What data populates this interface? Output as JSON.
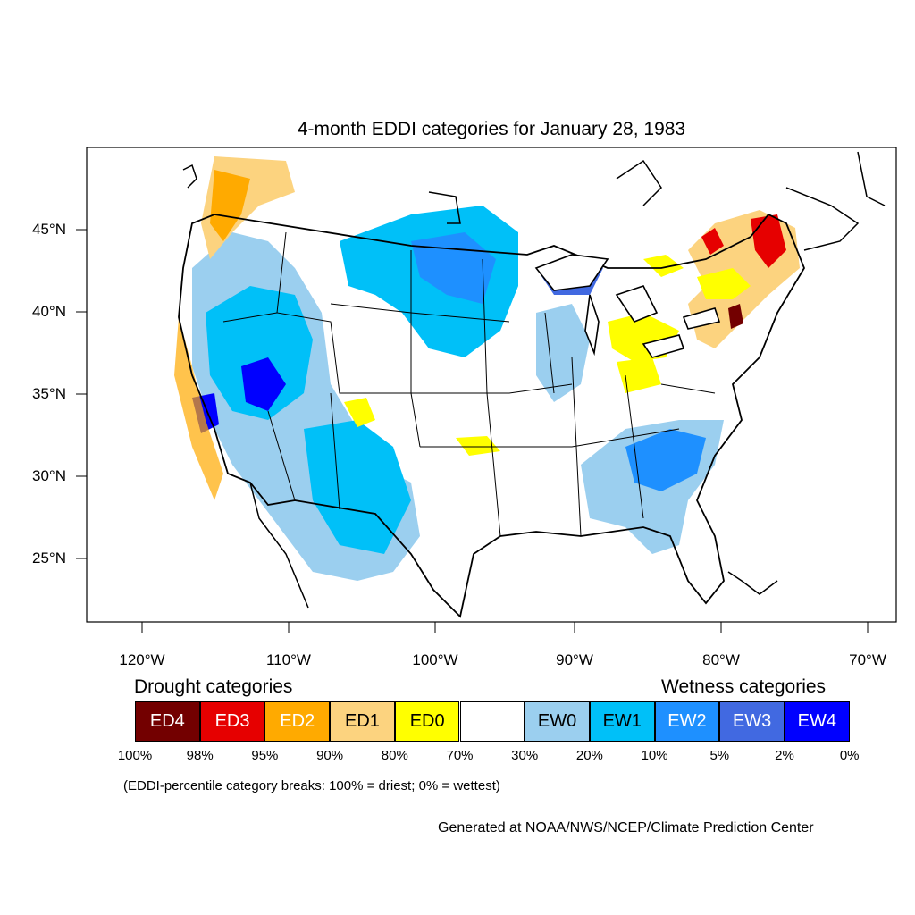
{
  "title": "4-month EDDI categories for January 28, 1983",
  "lat_labels": [
    "45°N",
    "40°N",
    "35°N",
    "30°N",
    "25°N"
  ],
  "lon_labels": [
    "120°W",
    "110°W",
    "100°W",
    "90°W",
    "80°W",
    "70°W"
  ],
  "legend": {
    "drought_heading": "Drought categories",
    "wetness_heading": "Wetness categories",
    "categories": [
      {
        "label": "ED4",
        "color": "#730000"
      },
      {
        "label": "ED3",
        "color": "#e60000"
      },
      {
        "label": "ED2",
        "color": "#ffaa00"
      },
      {
        "label": "ED1",
        "color": "#fcd37f"
      },
      {
        "label": "ED0",
        "color": "#ffff00"
      },
      {
        "label": "",
        "color": "#ffffff"
      },
      {
        "label": "EW0",
        "color": "#9bcfef"
      },
      {
        "label": "EW1",
        "color": "#00c0f8"
      },
      {
        "label": "EW2",
        "color": "#1e90ff"
      },
      {
        "label": "EW3",
        "color": "#4169e1"
      },
      {
        "label": "EW4",
        "color": "#0000ff"
      }
    ],
    "breaks": [
      "100%",
      "98%",
      "95%",
      "90%",
      "80%",
      "70%",
      "30%",
      "20%",
      "10%",
      "5%",
      "2%",
      "0%"
    ]
  },
  "note": "(EDDI-percentile category breaks: 100% = driest; 0% = wettest)",
  "credit": "Generated at NOAA/NWS/NCEP/Climate Prediction Center"
}
